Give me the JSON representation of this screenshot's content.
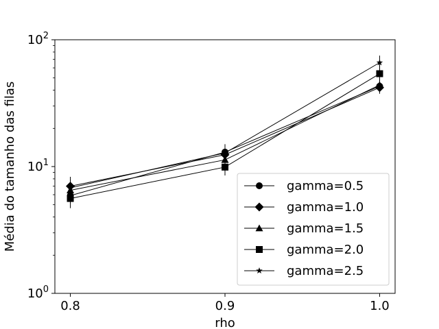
{
  "chart_data": {
    "type": "line",
    "title": "",
    "xlabel": "rho",
    "ylabel": "Média do tamanho das filas",
    "x": [
      0.8,
      0.9,
      1.0
    ],
    "x_tick_labels": [
      "0.8",
      "0.9",
      "1.0"
    ],
    "xlim": [
      0.79,
      1.01
    ],
    "yscale": "log",
    "ylim": [
      1,
      100
    ],
    "y_major_ticks": [
      1,
      10,
      100
    ],
    "y_tick_labels": [
      {
        "base": "10",
        "exp": "0"
      },
      {
        "base": "10",
        "exp": "1"
      },
      {
        "base": "10",
        "exp": "2"
      }
    ],
    "grid": false,
    "legend_position": "lower right",
    "error_bars": true,
    "series": [
      {
        "name": "gamma=0.5",
        "marker": "circle",
        "color": "#000000",
        "values": [
          5.9,
          13.0,
          43.0
        ],
        "errors": [
          [
            5.1,
            6.8
          ],
          [
            11.6,
            14.5
          ],
          [
            38.0,
            48.0
          ]
        ]
      },
      {
        "name": "gamma=1.0",
        "marker": "diamond",
        "color": "#000000",
        "values": [
          7.0,
          12.4,
          42.0
        ],
        "errors": [
          [
            6.2,
            7.9
          ],
          [
            11.2,
            13.8
          ],
          [
            37.5,
            47.0
          ]
        ]
      },
      {
        "name": "gamma=1.5",
        "marker": "triangle",
        "color": "#000000",
        "values": [
          6.5,
          11.3,
          44.0
        ],
        "errors": [
          [
            5.7,
            7.4
          ],
          [
            10.2,
            12.5
          ],
          [
            39.0,
            50.0
          ]
        ]
      },
      {
        "name": "gamma=2.0",
        "marker": "square",
        "color": "#000000",
        "values": [
          5.6,
          9.9,
          54.0
        ],
        "errors": [
          [
            4.7,
            6.6
          ],
          [
            8.5,
            11.5
          ],
          [
            46.0,
            63.0
          ]
        ]
      },
      {
        "name": "gamma=2.5",
        "marker": "star",
        "color": "#000000",
        "values": [
          6.8,
          12.8,
          66.0
        ],
        "errors": [
          [
            5.9,
            8.3
          ],
          [
            11.5,
            15.0
          ],
          [
            57.0,
            75.0
          ]
        ]
      }
    ]
  }
}
